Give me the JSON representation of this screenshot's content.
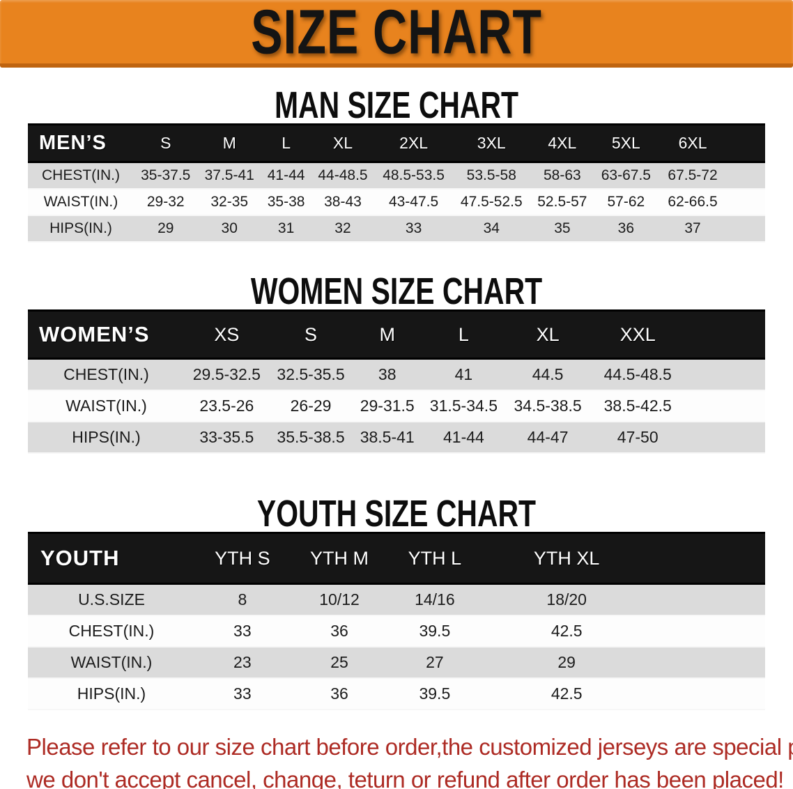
{
  "banner": {
    "title": "SIZE CHART"
  },
  "sections": [
    {
      "id": "men",
      "title": "MAN SIZE CHART",
      "header": [
        "MEN’S",
        "S",
        "M",
        "L",
        "XL",
        "2XL",
        "3XL",
        "4XL",
        "5XL",
        "6XL"
      ],
      "rows": [
        [
          "CHEST(IN.)",
          "35-37.5",
          "37.5-41",
          "41-44",
          "44-48.5",
          "48.5-53.5",
          "53.5-58",
          "58-63",
          "63-67.5",
          "67.5-72"
        ],
        [
          "WAIST(IN.)",
          "29-32",
          "32-35",
          "35-38",
          "38-43",
          "43-47.5",
          "47.5-52.5",
          "52.5-57",
          "57-62",
          "62-66.5"
        ],
        [
          "HIPS(IN.)",
          "29",
          "30",
          "31",
          "32",
          "33",
          "34",
          "35",
          "36",
          "37"
        ]
      ]
    },
    {
      "id": "women",
      "title": "WOMEN SIZE CHART",
      "header": [
        "WOMEN’S",
        "XS",
        "S",
        "M",
        "L",
        "XL",
        "XXL"
      ],
      "rows": [
        [
          "CHEST(IN.)",
          "29.5-32.5",
          "32.5-35.5",
          "38",
          "41",
          "44.5",
          "44.5-48.5"
        ],
        [
          "WAIST(IN.)",
          "23.5-26",
          "26-29",
          "29-31.5",
          "31.5-34.5",
          "34.5-38.5",
          "38.5-42.5"
        ],
        [
          "HIPS(IN.)",
          "33-35.5",
          "35.5-38.5",
          "38.5-41",
          "41-44",
          "44-47",
          "47-50"
        ]
      ]
    },
    {
      "id": "youth",
      "title": "YOUTH SIZE CHART",
      "header": [
        "YOUTH",
        "YTH S",
        "YTH M",
        "YTH L",
        "YTH XL"
      ],
      "rows": [
        [
          "U.S.SIZE",
          "8",
          "10/12",
          "14/16",
          "18/20"
        ],
        [
          "CHEST(IN.)",
          "33",
          "36",
          "39.5",
          "42.5"
        ],
        [
          "WAIST(IN.)",
          "23",
          "25",
          "27",
          "29"
        ],
        [
          "HIPS(IN.)",
          "33",
          "36",
          "39.5",
          "42.5"
        ]
      ]
    }
  ],
  "disclaimer": {
    "line1": "Please refer to our size chart before order,the customized jerseys are special products,",
    "line2": "we don't accept cancel, change, teturn or refund after order has been placed!"
  },
  "colors": {
    "banner_bg": "#E8831E",
    "banner_border": "#BF6410",
    "header_bg": "#161616",
    "row_alt_bg": "#DBDBDB",
    "disclaimer_text": "#AD2B24"
  }
}
